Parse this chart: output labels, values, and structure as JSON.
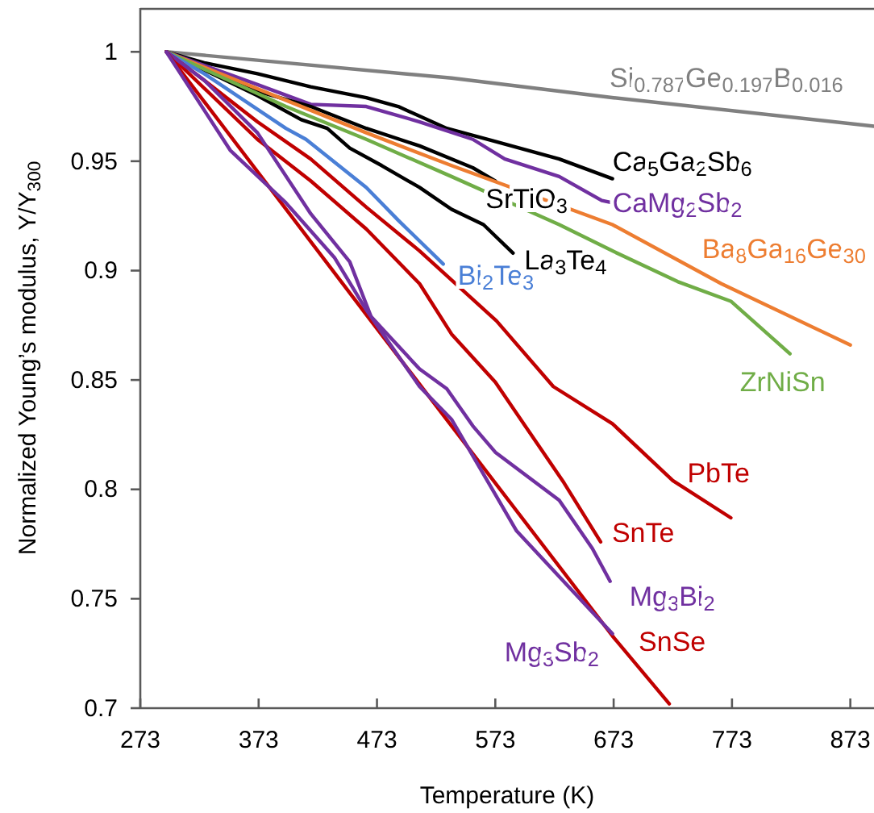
{
  "chart_data": {
    "type": "line",
    "xlabel": "Temperature (K)",
    "ylabel": "Normalized Young’s modulus, Y/Y$_{300}$",
    "xlim": [
      273,
      893
    ],
    "xticks": [
      273,
      373,
      473,
      573,
      673,
      773,
      873
    ],
    "ylim": [
      0.7,
      1.02
    ],
    "yticks": [
      {
        "value": 0.7,
        "label": "0.7"
      },
      0.75,
      {
        "value": 0.8,
        "label": "0.8"
      },
      0.85,
      {
        "value": 0.9,
        "label": "0.9"
      },
      0.95,
      1
    ],
    "grid": false,
    "legend": false,
    "marker": "none",
    "line_style": "solid",
    "series": [
      {
        "name": "Si$_{0.787}$Ge$_{0.197}$B$_{0.016}$",
        "color": "#808080",
        "x": [
          295,
          536,
          673,
          893
        ],
        "values": [
          1,
          0.988,
          0.979,
          0.966
        ]
      },
      {
        "name": "Ca$_{5}$Ga$_{2}$Sb$_{6}$",
        "color": "#000000",
        "x": [
          295,
          327,
          372,
          417,
          464,
          491,
          532,
          573,
          627,
          672
        ],
        "values": [
          1,
          0.995,
          0.99,
          0.984,
          0.979,
          0.975,
          0.965,
          0.959,
          0.951,
          0.942
        ]
      },
      {
        "name": "CaMg$_{2}$Sb$_{2}$",
        "color": "#7030a0",
        "x": [
          295,
          372,
          417,
          464,
          509,
          554,
          581,
          627,
          663,
          672
        ],
        "values": [
          1,
          0.985,
          0.976,
          0.975,
          0.968,
          0.96,
          0.951,
          0.943,
          0.932,
          0.931
        ]
      },
      {
        "name": "SrTiO$_{3}$",
        "color": "#000000",
        "x": [
          295,
          372,
          417,
          464,
          509,
          554,
          573
        ],
        "values": [
          1,
          0.982,
          0.975,
          0.965,
          0.957,
          0.947,
          0.941
        ]
      },
      {
        "name": "La$_{3}$Te$_{4}$",
        "color": "#000000",
        "x": [
          295,
          372,
          409,
          431,
          450,
          477,
          509,
          536,
          563,
          588
        ],
        "values": [
          1,
          0.98,
          0.969,
          0.965,
          0.956,
          0.948,
          0.938,
          0.928,
          0.921,
          0.908
        ]
      },
      {
        "name": "Ba$_{8}$Ga$_{16}$Ge$_{30}$",
        "color": "#ed7d31",
        "x": [
          295,
          464,
          536,
          672,
          764,
          873
        ],
        "values": [
          1,
          0.963,
          0.948,
          0.921,
          0.894,
          0.866
        ]
      },
      {
        "name": "ZrNiSn",
        "color": "#70ad47",
        "x": [
          295,
          396,
          464,
          536,
          627,
          672,
          727,
          772,
          822
        ],
        "values": [
          1,
          0.975,
          0.96,
          0.943,
          0.921,
          0.909,
          0.895,
          0.886,
          0.862
        ]
      },
      {
        "name": "Bi$_{2}$Te$_{3}$",
        "color": "#4a7fd6",
        "x": [
          295,
          327,
          396,
          413,
          464,
          491,
          529
        ],
        "values": [
          1,
          0.99,
          0.965,
          0.96,
          0.938,
          0.923,
          0.903
        ]
      },
      {
        "name": "PbTe",
        "color": "#c00000",
        "x": [
          295,
          327,
          372,
          417,
          464,
          509,
          574,
          622,
          672,
          723,
          772
        ],
        "values": [
          1,
          0.987,
          0.968,
          0.951,
          0.929,
          0.909,
          0.877,
          0.847,
          0.83,
          0.804,
          0.787
        ]
      },
      {
        "name": "SnTe",
        "color": "#c00000",
        "x": [
          295,
          372,
          417,
          464,
          509,
          536,
          573,
          631,
          662
        ],
        "values": [
          1,
          0.96,
          0.941,
          0.919,
          0.894,
          0.871,
          0.849,
          0.803,
          0.776
        ]
      },
      {
        "name": "Mg$_{3}$Bi$_{2}$",
        "color": "#7030a0",
        "x": [
          295,
          327,
          372,
          417,
          450,
          468,
          509,
          532,
          554,
          573,
          627,
          655,
          670
        ],
        "values": [
          1,
          0.987,
          0.963,
          0.926,
          0.904,
          0.879,
          0.855,
          0.846,
          0.829,
          0.817,
          0.795,
          0.773,
          0.758
        ]
      },
      {
        "name": "SnSe",
        "color": "#c00000",
        "x": [
          295,
          468,
          672,
          720
        ],
        "values": [
          1,
          0.877,
          0.733,
          0.702
        ]
      },
      {
        "name": "Mg$_{3}$Sb$_{2}$",
        "color": "#7030a0",
        "x": [
          295,
          349,
          396,
          437,
          464,
          509,
          536,
          591,
          672
        ],
        "values": [
          1,
          0.955,
          0.931,
          0.906,
          0.882,
          0.847,
          0.832,
          0.781,
          0.734
        ]
      }
    ]
  }
}
